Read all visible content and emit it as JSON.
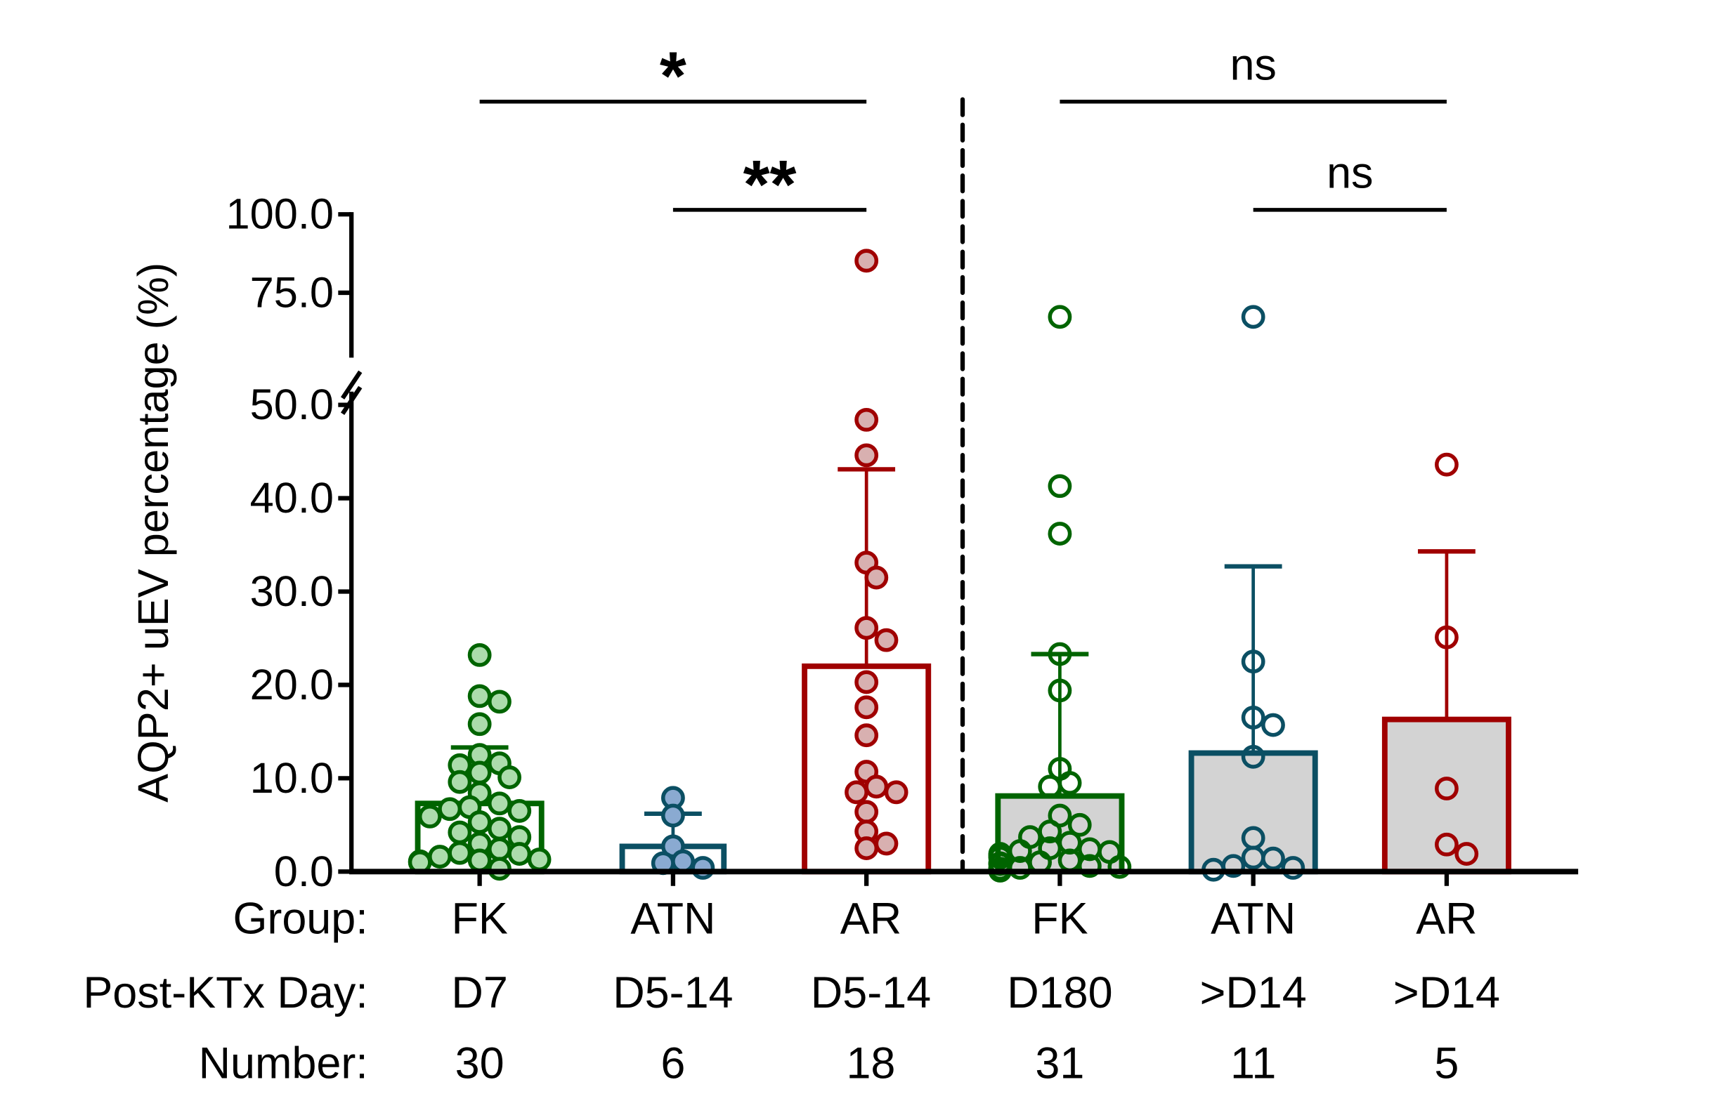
{
  "chart_data": {
    "type": "bar",
    "subtype": "bar-with-scatter-and-sd-errorbars",
    "title": "",
    "ylabel": "AQP2+ uEV percentage (%)",
    "xlabel": "",
    "ylim": [
      0,
      100
    ],
    "y_axis_break": [
      50,
      55
    ],
    "yticks": [
      {
        "value": 0,
        "label": "0.0"
      },
      {
        "value": 10,
        "label": "10.0"
      },
      {
        "value": 20,
        "label": "20.0"
      },
      {
        "value": 30,
        "label": "30.0"
      },
      {
        "value": 40,
        "label": "40.0"
      },
      {
        "value": 50,
        "label": "50.0"
      },
      {
        "value": 75,
        "label": "75.0"
      },
      {
        "value": 100,
        "label": "100.0"
      }
    ],
    "grid": false,
    "legend": "none",
    "row_labels": {
      "group": "Group:",
      "day": "Post-KTx Day:",
      "number": "Number:"
    },
    "categories": [
      "FK D7",
      "ATN D5-14",
      "AR D5-14",
      "FK D180",
      "ATN >D14",
      "AR >D14"
    ],
    "groups": [
      {
        "group": "FK",
        "day": "D7",
        "number": "30",
        "stroke": "#006400",
        "fill": "#acdcac",
        "bar_fill": "none",
        "marker": "filled",
        "mean": 7.3,
        "sd_upper": 13.3,
        "points": [
          23.2,
          18.8,
          18.2,
          15.8,
          12.5,
          11.6,
          11.4,
          10.6,
          10.1,
          9.6,
          8.4,
          7.3,
          6.9,
          6.7,
          6.5,
          5.9,
          5.3,
          4.6,
          4.2,
          3.7,
          3.0,
          2.4,
          2.0,
          1.9,
          1.6,
          1.3,
          1.2,
          1.1,
          1.0,
          0.3
        ]
      },
      {
        "group": "ATN",
        "day": "D5-14",
        "number": "6",
        "stroke": "#0b4f63",
        "fill": "#8aaad1",
        "bar_fill": "none",
        "marker": "filled",
        "mean": 2.7,
        "sd_upper": 6.2,
        "points": [
          7.9,
          6.0,
          2.7,
          1.1,
          0.9,
          0.4
        ]
      },
      {
        "group": "AR",
        "day": "D5-14",
        "number": "18",
        "stroke": "#a00000",
        "fill": "#d8b0b0",
        "bar_fill": "none",
        "marker": "filled",
        "mean": 22.0,
        "sd_upper": 43.1,
        "points": [
          85.2,
          48.4,
          44.6,
          33.1,
          31.5,
          26.1,
          24.8,
          20.3,
          17.6,
          14.6,
          10.7,
          9.1,
          8.5,
          8.5,
          6.4,
          4.3,
          3.0,
          2.5
        ]
      },
      {
        "group": "FK",
        "day": "D180",
        "number": "31",
        "stroke": "#006400",
        "fill": "none",
        "bar_fill": "#d3d3d3",
        "marker": "open",
        "mean": 8.1,
        "sd_upper": 23.3,
        "points": [
          67.3,
          41.3,
          36.2,
          23.3,
          19.4,
          11.0,
          9.5,
          9.1,
          6.0,
          5.0,
          4.3,
          3.7,
          3.1,
          2.5,
          2.4,
          2.2,
          2.1,
          1.9,
          1.7,
          1.5,
          1.2,
          1.0,
          0.9,
          0.8,
          0.6,
          0.5,
          0.4,
          0.3,
          0.3,
          0.2,
          0.1
        ]
      },
      {
        "group": "ATN",
        "day": ">D14",
        "number": "11",
        "stroke": "#0b4f63",
        "fill": "none",
        "bar_fill": "#d3d3d3",
        "marker": "open",
        "mean": 12.7,
        "sd_upper": 32.7,
        "points": [
          67.3,
          22.5,
          16.5,
          15.7,
          12.3,
          3.6,
          1.5,
          1.4,
          0.6,
          0.4,
          0.2
        ]
      },
      {
        "group": "AR",
        "day": ">D14",
        "number": "5",
        "stroke": "#a00000",
        "fill": "none",
        "bar_fill": "#d3d3d3",
        "marker": "open",
        "mean": 16.3,
        "sd_upper": 34.3,
        "points": [
          43.6,
          25.1,
          8.9,
          2.9,
          1.9
        ]
      }
    ],
    "divider": {
      "style": "dashed",
      "between": [
        "AR D5-14",
        "FK D180"
      ]
    },
    "significance": [
      {
        "from": 0,
        "to": 2,
        "label": "*",
        "level": "upper"
      },
      {
        "from": 1,
        "to": 2,
        "label": "**",
        "level": "lower"
      },
      {
        "from": 3,
        "to": 5,
        "label": "ns",
        "level": "upper"
      },
      {
        "from": 4,
        "to": 5,
        "label": "ns",
        "level": "lower"
      }
    ]
  }
}
